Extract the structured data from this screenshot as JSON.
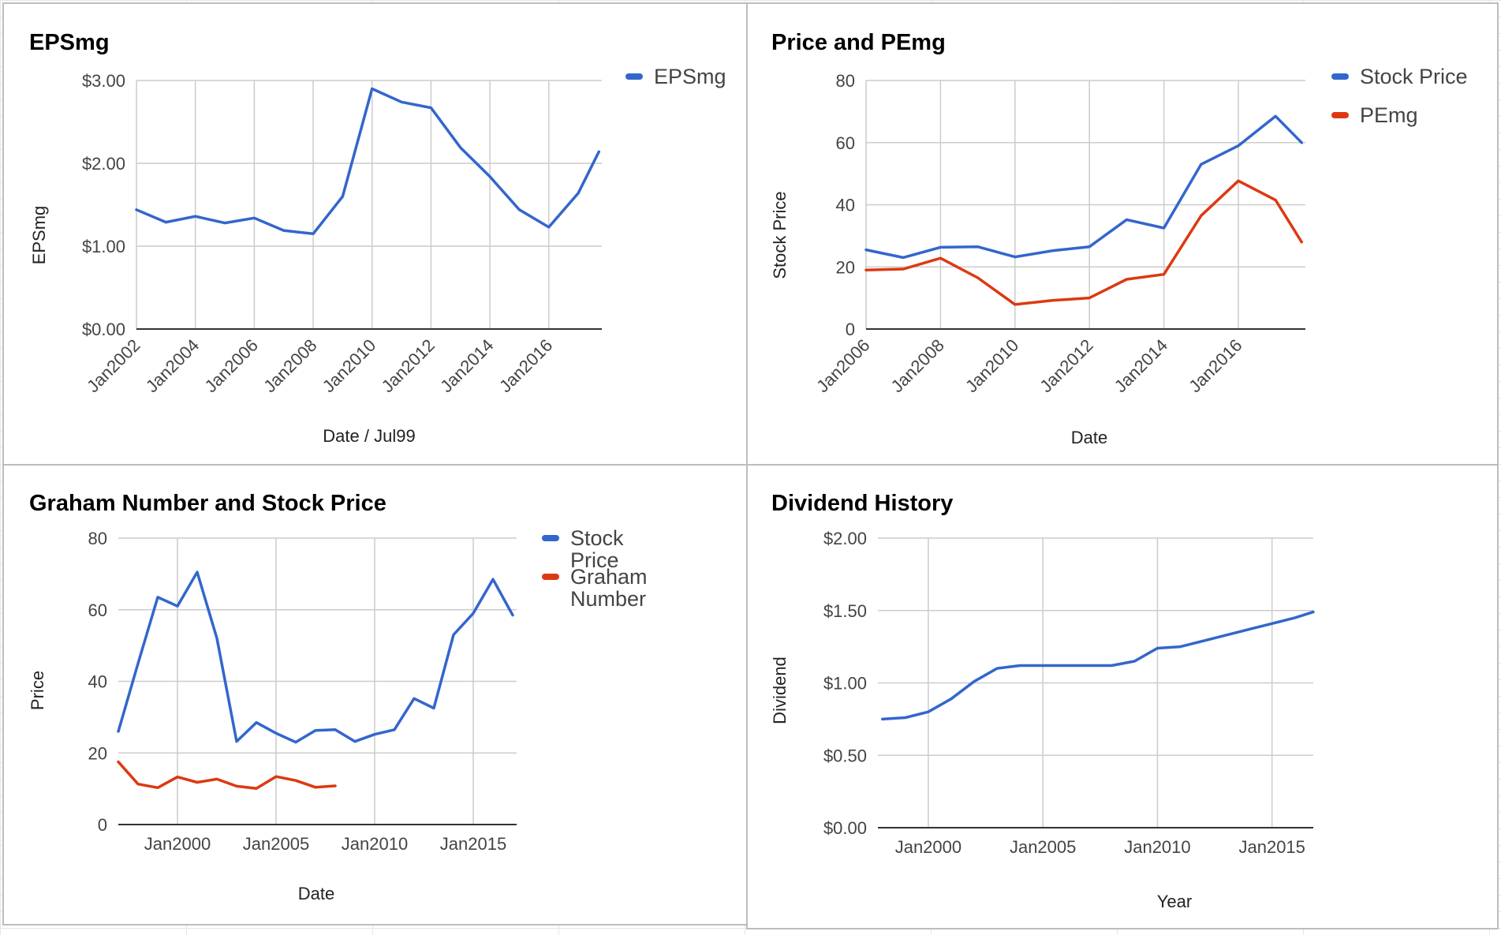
{
  "chart_data": [
    {
      "id": "eps",
      "type": "line",
      "title": "EPSmg",
      "xlabel": "Date / Jul99",
      "ylabel": "EPSmg",
      "x_ticks": [
        "Jan2002",
        "Jan2004",
        "Jan2006",
        "Jan2008",
        "Jan2010",
        "Jan2012",
        "Jan2014",
        "Jan2016"
      ],
      "y_ticks": [
        "$0.00",
        "$1.00",
        "$2.00",
        "$3.00"
      ],
      "ylim": [
        0,
        3
      ],
      "xlim": [
        2002,
        2017.8
      ],
      "grid": true,
      "legend_position": "right",
      "series": [
        {
          "name": "EPSmg",
          "color": "#3366cc",
          "x": [
            2002,
            2003,
            2004,
            2005,
            2006,
            2007,
            2008,
            2009,
            2010,
            2011,
            2012,
            2013,
            2014,
            2015,
            2016,
            2017,
            2017.7
          ],
          "y": [
            1.44,
            1.29,
            1.36,
            1.28,
            1.34,
            1.19,
            1.15,
            1.6,
            2.9,
            2.74,
            2.67,
            2.19,
            1.84,
            1.44,
            1.23,
            1.64,
            2.14
          ]
        }
      ]
    },
    {
      "id": "pe",
      "type": "line",
      "title": "Price and PEmg",
      "xlabel": "Date",
      "ylabel": "Stock Price",
      "x_ticks": [
        "Jan2006",
        "Jan2008",
        "Jan2010",
        "Jan2012",
        "Jan2014",
        "Jan2016"
      ],
      "y_ticks": [
        "0",
        "20",
        "40",
        "60",
        "80"
      ],
      "ylim": [
        0,
        80
      ],
      "xlim": [
        2006,
        2017.8
      ],
      "grid": true,
      "legend_position": "right",
      "series": [
        {
          "name": "Stock Price",
          "color": "#3366cc",
          "x": [
            2006,
            2007,
            2008,
            2009,
            2010,
            2011,
            2012,
            2013,
            2014,
            2015,
            2016,
            2017,
            2017.7
          ],
          "y": [
            25.5,
            23,
            26.3,
            26.5,
            23.2,
            25.2,
            26.5,
            35.2,
            32.5,
            53,
            59,
            68.5,
            60
          ]
        },
        {
          "name": "PEmg",
          "color": "#dc3912",
          "x": [
            2006,
            2007,
            2008,
            2009,
            2010,
            2011,
            2012,
            2013,
            2014,
            2015,
            2016,
            2017,
            2017.7
          ],
          "y": [
            19,
            19.3,
            22.8,
            16.5,
            7.9,
            9.2,
            10,
            16,
            17.6,
            36.5,
            47.7,
            41.5,
            28
          ]
        }
      ]
    },
    {
      "id": "graham",
      "type": "line",
      "title": "Graham Number and Stock Price",
      "xlabel": "Date",
      "ylabel": "Price",
      "x_ticks": [
        "Jan2000",
        "Jan2005",
        "Jan2010",
        "Jan2015"
      ],
      "y_ticks": [
        "0",
        "20",
        "40",
        "60",
        "80"
      ],
      "ylim": [
        0,
        80
      ],
      "xlim": [
        1997,
        2017.2
      ],
      "grid": true,
      "legend_position": "right",
      "series": [
        {
          "name": "Stock Price",
          "color": "#3366cc",
          "x": [
            1997,
            1998,
            1999,
            2000,
            2001,
            2002,
            2003,
            2004,
            2005,
            2006,
            2007,
            2008,
            2009,
            2010,
            2011,
            2012,
            2013,
            2014,
            2015,
            2016,
            2017
          ],
          "y": [
            26,
            45,
            63.5,
            61,
            70.5,
            52,
            23.2,
            28.5,
            25.5,
            23,
            26.3,
            26.5,
            23.2,
            25.2,
            26.5,
            35.2,
            32.5,
            53,
            59,
            68.5,
            58.5
          ]
        },
        {
          "name": "Graham Number",
          "color": "#dc3912",
          "x": [
            1997,
            1998,
            1999,
            2000,
            2001,
            2002,
            2003,
            2004,
            2005,
            2006,
            2007,
            2008
          ],
          "y": [
            17.5,
            11.3,
            10.3,
            13.3,
            11.8,
            12.7,
            10.7,
            10.1,
            13.4,
            12.3,
            10.4,
            10.8
          ]
        }
      ]
    },
    {
      "id": "dividend",
      "type": "line",
      "title": "Dividend History",
      "xlabel": "Year",
      "ylabel": "Dividend",
      "x_ticks": [
        "Jan2000",
        "Jan2005",
        "Jan2010",
        "Jan2015"
      ],
      "y_ticks": [
        "$0.00",
        "$0.50",
        "$1.00",
        "$1.50",
        "$2.00"
      ],
      "ylim": [
        0,
        2
      ],
      "xlim": [
        1997.8,
        2016.8
      ],
      "grid": true,
      "legend_position": "none",
      "series": [
        {
          "name": "",
          "color": "#3366cc",
          "x": [
            1998,
            1999,
            2000,
            2001,
            2002,
            2003,
            2004,
            2005,
            2006,
            2007,
            2008,
            2009,
            2010,
            2011,
            2012,
            2013,
            2014,
            2015,
            2016,
            2016.8
          ],
          "y": [
            0.75,
            0.76,
            0.8,
            0.89,
            1.01,
            1.1,
            1.12,
            1.12,
            1.12,
            1.12,
            1.12,
            1.15,
            1.24,
            1.25,
            1.29,
            1.33,
            1.37,
            1.41,
            1.45,
            1.49
          ]
        }
      ]
    }
  ]
}
